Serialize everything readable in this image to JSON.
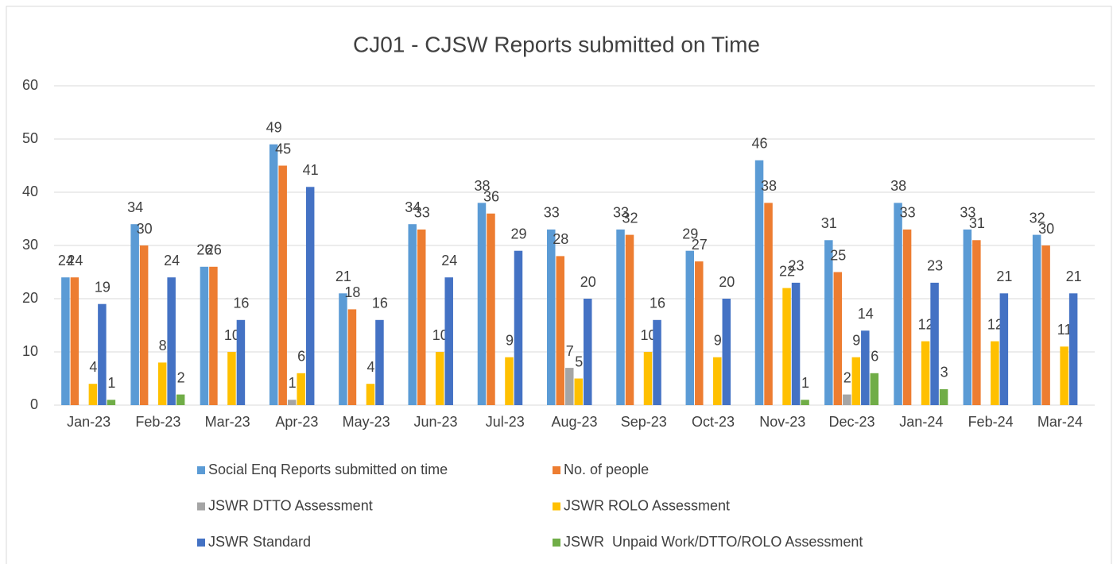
{
  "chart_data": {
    "type": "bar",
    "title": "CJ01 - CJSW Reports submitted on Time",
    "categories": [
      "Jan-23",
      "Feb-23",
      "Mar-23",
      "Apr-23",
      "May-23",
      "Jun-23",
      "Jul-23",
      "Aug-23",
      "Sep-23",
      "Oct-23",
      "Nov-23",
      "Dec-23",
      "Jan-24",
      "Feb-24",
      "Mar-24"
    ],
    "series": [
      {
        "name": "Social Enq Reports submitted on time",
        "color": "#5b9bd5",
        "values": [
          24,
          34,
          26,
          49,
          21,
          34,
          38,
          33,
          33,
          29,
          46,
          31,
          38,
          33,
          32
        ]
      },
      {
        "name": "No. of people",
        "color": "#ed7d31",
        "values": [
          24,
          30,
          26,
          45,
          18,
          33,
          36,
          28,
          32,
          27,
          38,
          25,
          33,
          31,
          30
        ]
      },
      {
        "name": "JSWR DTTO Assessment",
        "color": "#a5a5a5",
        "values": [
          null,
          null,
          null,
          1,
          null,
          null,
          null,
          7,
          null,
          null,
          null,
          2,
          null,
          null,
          null
        ]
      },
      {
        "name": "JSWR ROLO Assessment",
        "color": "#ffc000",
        "values": [
          4,
          8,
          10,
          6,
          4,
          10,
          9,
          5,
          10,
          9,
          22,
          9,
          12,
          12,
          11
        ]
      },
      {
        "name": "JSWR Standard",
        "color": "#4472c4",
        "values": [
          19,
          24,
          16,
          41,
          16,
          24,
          29,
          20,
          16,
          20,
          23,
          14,
          23,
          21,
          21
        ]
      },
      {
        "name": "JSWR  Unpaid Work/DTTO/ROLO Assessment",
        "color": "#70ad47",
        "values": [
          1,
          2,
          null,
          null,
          null,
          null,
          null,
          null,
          null,
          null,
          1,
          6,
          3,
          null,
          null
        ]
      }
    ],
    "ylim": [
      0,
      60
    ],
    "yticks": [
      0,
      10,
      20,
      30,
      40,
      50,
      60
    ],
    "grid": true,
    "legend": "bottom"
  }
}
